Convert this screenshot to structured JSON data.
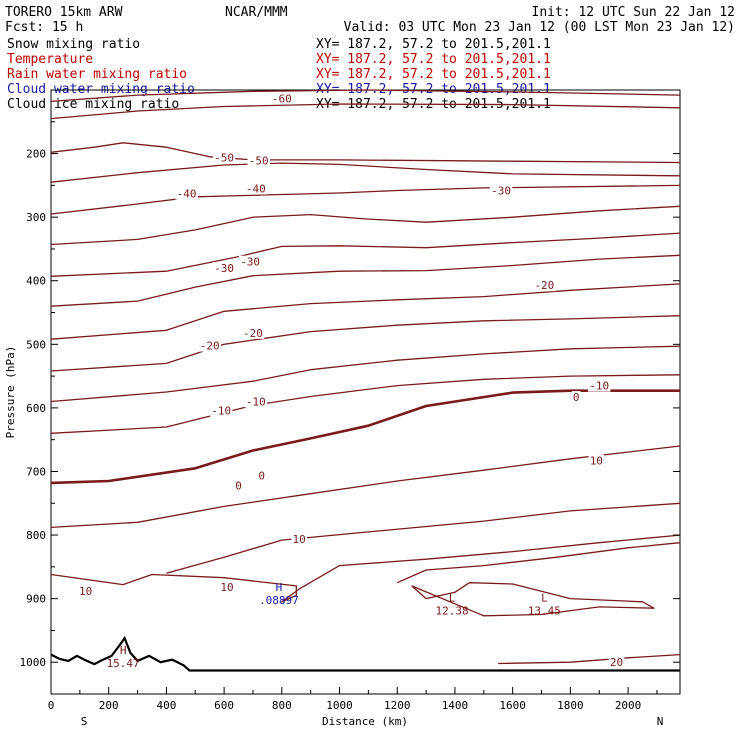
{
  "header": {
    "model": "TORERO 15km ARW",
    "center": "NCAR/MMM",
    "init": "Init: 12 UTC Sun 22 Jan 12",
    "fcst": "Fcst:  15 h",
    "valid": "Valid: 03 UTC Mon 23 Jan 12 (00 LST Mon 23 Jan 12)"
  },
  "fields": [
    {
      "name": "Snow mixing ratio",
      "xy": "XY= 187.2, 57.2 to 201.5,201.1",
      "color": "#000000"
    },
    {
      "name": "Temperature",
      "xy": "XY= 187.2, 57.2 to 201.5,201.1",
      "color": "#c00000"
    },
    {
      "name": "Rain water mixing ratio",
      "xy": "XY= 187.2, 57.2 to 201.5,201.1",
      "color": "#c00000"
    },
    {
      "name": "Cloud water mixing ratio",
      "xy": "XY= 187.2, 57.2 to 201.5,201.1",
      "color": "#1a1aa8"
    },
    {
      "name": "Cloud ice mixing ratio",
      "xy": "XY= 187.2, 57.2 to 201.5,201.1",
      "color": "#000000"
    }
  ],
  "chart_data": {
    "type": "line",
    "xlabel": "Distance (km)",
    "ylabel": "Pressure (hPa)",
    "xlim": [
      0,
      2180
    ],
    "ylim": [
      1050,
      100
    ],
    "x_ticks": [
      0,
      200,
      400,
      600,
      800,
      1000,
      1200,
      1400,
      1600,
      1800,
      2000
    ],
    "y_ticks": [
      200,
      300,
      400,
      500,
      600,
      700,
      800,
      900,
      1000
    ],
    "left_end": "S",
    "right_end": "N",
    "line_color": "#7a1a1a",
    "isotherms": [
      {
        "points": [
          [
            0,
            118
          ],
          [
            300,
            108
          ],
          [
            700,
            102
          ],
          [
            1100,
            100
          ],
          [
            1600,
            103
          ],
          [
            2180,
            108
          ]
        ]
      },
      {
        "points": [
          [
            0,
            145
          ],
          [
            300,
            133
          ],
          [
            600,
            126
          ],
          [
            1000,
            122
          ],
          [
            1600,
            123
          ],
          [
            2180,
            128
          ]
        ]
      },
      {
        "points": [
          [
            0,
            198
          ],
          [
            150,
            190
          ],
          [
            250,
            183
          ],
          [
            400,
            190
          ],
          [
            550,
            205
          ],
          [
            700,
            210
          ],
          [
            1000,
            210
          ],
          [
            1600,
            212
          ],
          [
            2180,
            214
          ]
        ]
      },
      {
        "points": [
          [
            0,
            245
          ],
          [
            300,
            230
          ],
          [
            600,
            218
          ],
          [
            800,
            215
          ],
          [
            1000,
            217
          ],
          [
            1300,
            225
          ],
          [
            1600,
            232
          ],
          [
            2180,
            235
          ]
        ]
      },
      {
        "points": [
          [
            0,
            295
          ],
          [
            250,
            282
          ],
          [
            500,
            268
          ],
          [
            750,
            265
          ],
          [
            1000,
            262
          ],
          [
            1200,
            258
          ],
          [
            1500,
            254
          ],
          [
            2180,
            250
          ]
        ]
      },
      {
        "points": [
          [
            0,
            343
          ],
          [
            300,
            335
          ],
          [
            500,
            320
          ],
          [
            700,
            300
          ],
          [
            900,
            296
          ],
          [
            1100,
            303
          ],
          [
            1300,
            308
          ],
          [
            1600,
            300
          ],
          [
            1900,
            290
          ],
          [
            2180,
            283
          ]
        ]
      },
      {
        "points": [
          [
            0,
            393
          ],
          [
            400,
            385
          ],
          [
            650,
            362
          ],
          [
            800,
            346
          ],
          [
            1000,
            345
          ],
          [
            1300,
            348
          ],
          [
            1600,
            340
          ],
          [
            1900,
            333
          ],
          [
            2180,
            325
          ]
        ]
      },
      {
        "points": [
          [
            0,
            440
          ],
          [
            300,
            432
          ],
          [
            500,
            410
          ],
          [
            700,
            392
          ],
          [
            1000,
            385
          ],
          [
            1300,
            384
          ],
          [
            1600,
            376
          ],
          [
            1900,
            366
          ],
          [
            2180,
            360
          ]
        ]
      },
      {
        "points": [
          [
            0,
            492
          ],
          [
            400,
            478
          ],
          [
            600,
            448
          ],
          [
            900,
            436
          ],
          [
            1200,
            430
          ],
          [
            1500,
            425
          ],
          [
            1800,
            415
          ],
          [
            2180,
            405
          ]
        ]
      },
      {
        "points": [
          [
            0,
            542
          ],
          [
            400,
            530
          ],
          [
            600,
            500
          ],
          [
            900,
            480
          ],
          [
            1200,
            470
          ],
          [
            1500,
            463
          ],
          [
            1800,
            460
          ],
          [
            2180,
            455
          ]
        ]
      },
      {
        "points": [
          [
            0,
            590
          ],
          [
            400,
            575
          ],
          [
            700,
            558
          ],
          [
            900,
            540
          ],
          [
            1200,
            525
          ],
          [
            1500,
            515
          ],
          [
            1800,
            507
          ],
          [
            2180,
            503
          ]
        ]
      },
      {
        "points": [
          [
            0,
            640
          ],
          [
            400,
            630
          ],
          [
            700,
            596
          ],
          [
            900,
            582
          ],
          [
            1200,
            565
          ],
          [
            1500,
            555
          ],
          [
            1800,
            550
          ],
          [
            2180,
            548
          ]
        ]
      },
      {
        "points": [
          [
            0,
            718
          ],
          [
            200,
            715
          ],
          [
            500,
            695
          ],
          [
            700,
            667
          ],
          [
            900,
            648
          ],
          [
            1100,
            628
          ],
          [
            1300,
            597
          ],
          [
            1600,
            576
          ],
          [
            1800,
            573
          ],
          [
            2180,
            573
          ]
        ]
      },
      {
        "points": [
          [
            0,
            788
          ],
          [
            300,
            780
          ],
          [
            600,
            755
          ],
          [
            900,
            735
          ],
          [
            1200,
            715
          ],
          [
            1500,
            698
          ],
          [
            1800,
            680
          ],
          [
            2180,
            660
          ]
        ]
      },
      {
        "points": [
          [
            400,
            860
          ],
          [
            600,
            835
          ],
          [
            800,
            808
          ],
          [
            1100,
            795
          ],
          [
            1500,
            778
          ],
          [
            1800,
            762
          ],
          [
            2180,
            750
          ]
        ]
      },
      {
        "points": [
          [
            0,
            862
          ],
          [
            250,
            878
          ],
          [
            350,
            862
          ],
          [
            600,
            867
          ],
          [
            850,
            880
          ],
          [
            850,
            895
          ],
          [
            800,
            905
          ],
          [
            860,
            885
          ],
          [
            1000,
            848
          ],
          [
            1300,
            838
          ],
          [
            1600,
            826
          ],
          [
            1900,
            812
          ],
          [
            2180,
            800
          ]
        ]
      },
      {
        "points": [
          [
            1200,
            875
          ],
          [
            1300,
            855
          ],
          [
            1500,
            848
          ],
          [
            1750,
            835
          ],
          [
            2000,
            820
          ],
          [
            2180,
            812
          ]
        ]
      },
      {
        "points": [
          [
            1250,
            880
          ],
          [
            1300,
            900
          ],
          [
            1400,
            890
          ],
          [
            1450,
            875
          ],
          [
            1600,
            877
          ],
          [
            1800,
            900
          ],
          [
            2050,
            905
          ],
          [
            2090,
            915
          ],
          [
            1900,
            913
          ],
          [
            1700,
            925
          ],
          [
            1500,
            927
          ],
          [
            1250,
            880
          ]
        ]
      },
      {
        "points": [
          [
            1550,
            1002
          ],
          [
            1800,
            1000
          ],
          [
            2000,
            993
          ],
          [
            2180,
            988
          ]
        ]
      }
    ],
    "bold_zero_isotherm_index": 12,
    "contour_labels": [
      {
        "text": "-60",
        "x": 800,
        "y": 113
      },
      {
        "text": "-50",
        "x": 600,
        "y": 206
      },
      {
        "text": "-50",
        "x": 720,
        "y": 211
      },
      {
        "text": "-40",
        "x": 470,
        "y": 263
      },
      {
        "text": "-40",
        "x": 710,
        "y": 255
      },
      {
        "text": "-30",
        "x": 1560,
        "y": 258
      },
      {
        "text": "-30",
        "x": 600,
        "y": 380
      },
      {
        "text": "-30",
        "x": 690,
        "y": 370
      },
      {
        "text": "-20",
        "x": 1710,
        "y": 407
      },
      {
        "text": "-20",
        "x": 550,
        "y": 502
      },
      {
        "text": "-20",
        "x": 700,
        "y": 482
      },
      {
        "text": "-10",
        "x": 1900,
        "y": 565
      },
      {
        "text": "-10",
        "x": 590,
        "y": 604
      },
      {
        "text": "-10",
        "x": 710,
        "y": 590
      },
      {
        "text": "0",
        "x": 1820,
        "y": 583
      },
      {
        "text": "0",
        "x": 650,
        "y": 722
      },
      {
        "text": "0",
        "x": 730,
        "y": 706
      },
      {
        "text": "10",
        "x": 1890,
        "y": 683
      },
      {
        "text": "10",
        "x": 860,
        "y": 806
      },
      {
        "text": "10",
        "x": 120,
        "y": 888
      },
      {
        "text": "10",
        "x": 610,
        "y": 882
      },
      {
        "text": "20",
        "x": 1960,
        "y": 1000
      }
    ],
    "extrema": [
      {
        "kind": "H",
        "value": ".08897",
        "x": 790,
        "y": 893,
        "color": "#1a1aa8"
      },
      {
        "kind": "L",
        "value": "12.38",
        "x": 1390,
        "y": 909,
        "color": "#7a1a1a"
      },
      {
        "kind": "L",
        "value": "13.45",
        "x": 1710,
        "y": 909,
        "color": "#7a1a1a"
      },
      {
        "kind": "H",
        "value": "15.47",
        "x": 250,
        "y": 992,
        "color": "#7a1a1a"
      }
    ],
    "terrain": [
      [
        0,
        988
      ],
      [
        30,
        995
      ],
      [
        60,
        998
      ],
      [
        90,
        990
      ],
      [
        120,
        997
      ],
      [
        150,
        1003
      ],
      [
        180,
        996
      ],
      [
        210,
        990
      ],
      [
        240,
        972
      ],
      [
        255,
        962
      ],
      [
        275,
        985
      ],
      [
        300,
        998
      ],
      [
        340,
        990
      ],
      [
        380,
        1000
      ],
      [
        420,
        996
      ],
      [
        460,
        1005
      ],
      [
        480,
        1013
      ],
      [
        2180,
        1013
      ]
    ]
  }
}
